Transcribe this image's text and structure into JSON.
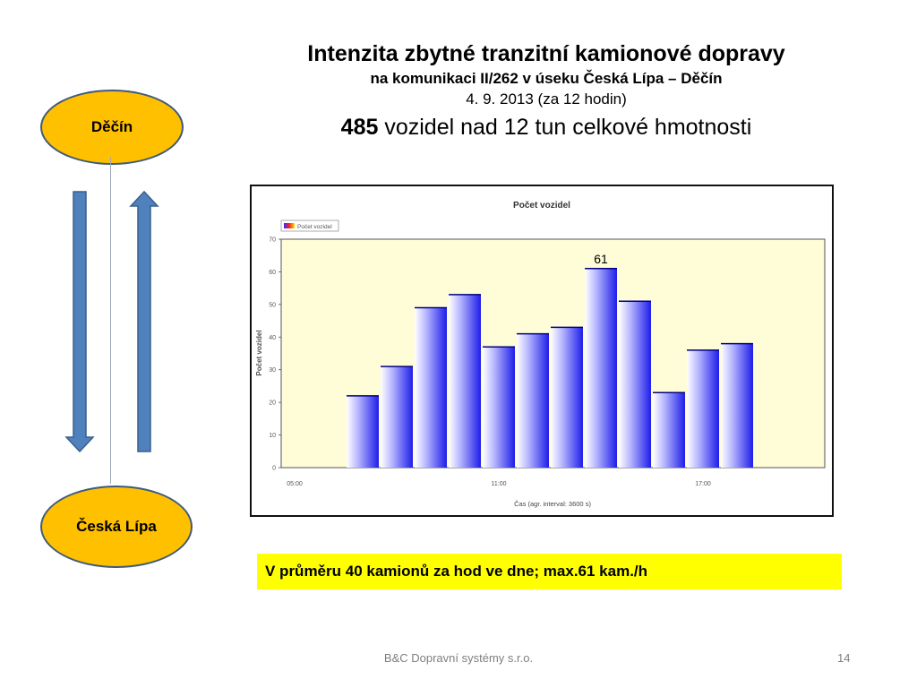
{
  "slide": {
    "title": "Intenzita zbytné tranzitní kamionové dopravy",
    "subtitle": "na komunikaci II/262 v úseku Česká Lípa – Děčín",
    "date": "4. 9. 2013 (za 12 hodin)",
    "vehicle_count": "485",
    "vehicle_text": " vozidel nad 12 tun celkové hmotnosti",
    "city_top": "Děčín",
    "city_bottom": "Česká Lípa",
    "summary": "V průměru 40 kamionů za hod ve dne;   max.61 kam./h",
    "footer": "B&C Dopravní systémy s.r.o.",
    "page_number": "14",
    "colors": {
      "city_fill": "#ffc000",
      "arrow_fill": "#4f81bd",
      "summary_fill": "#ffff00",
      "plot_bg": "#fffcd8"
    },
    "icons": [
      "arrow-down-icon",
      "arrow-up-icon"
    ]
  },
  "chart_data": {
    "type": "bar",
    "title": "Počet vozidel",
    "legend": "Počet vozidel",
    "xlabel": "Čas (agr. interval: 3600 s)",
    "ylabel": "Počet vozidel",
    "ylim": [
      0,
      70
    ],
    "yticks": [
      "0",
      "10",
      "20",
      "30",
      "40",
      "50",
      "60",
      "70"
    ],
    "xticks": [
      "05:00",
      "11:00",
      "17:00"
    ],
    "grid": false,
    "legend_position": "top-left",
    "categories": [
      "07:00",
      "08:00",
      "09:00",
      "10:00",
      "11:00",
      "12:00",
      "13:00",
      "14:00",
      "15:00",
      "16:00",
      "17:00",
      "18:00"
    ],
    "values": [
      22,
      31,
      49,
      53,
      37,
      41,
      43,
      61,
      51,
      23,
      36,
      38
    ],
    "annotation": "61"
  }
}
